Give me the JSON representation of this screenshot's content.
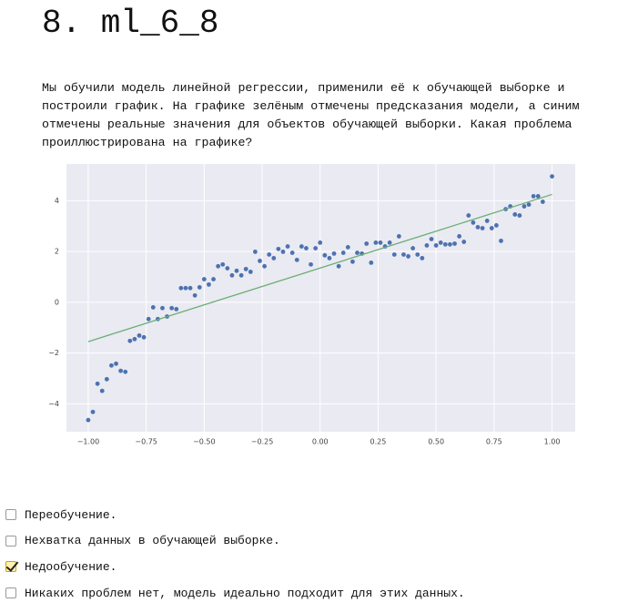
{
  "header": {
    "title": "8. ml_6_8"
  },
  "question": "Мы обучили модель линейной регрессии, применили её к обучающей выборке и построили график. На графике зелёным отмечены предсказания модели, а синим отмечены реальные значения для объектов обучающей выборки. Какая проблема проиллюстрирована на графике?",
  "chart_data": {
    "type": "scatter",
    "xlim": [
      -1.094,
      1.1
    ],
    "ylim": [
      -5.1,
      5.45
    ],
    "xticks": [
      {
        "value": -1,
        "label": "−1.00"
      },
      {
        "value": -0.75,
        "label": "−0.75"
      },
      {
        "value": -0.5,
        "label": "−0.50"
      },
      {
        "value": -0.25,
        "label": "−0.25"
      },
      {
        "value": 0,
        "label": "0.00"
      },
      {
        "value": 0.25,
        "label": "0.25"
      },
      {
        "value": 0.5,
        "label": "0.50"
      },
      {
        "value": 0.75,
        "label": "0.75"
      },
      {
        "value": 1,
        "label": "1.00"
      }
    ],
    "yticks": [
      {
        "value": -4,
        "label": "−4"
      },
      {
        "value": -2,
        "label": "−2"
      },
      0,
      2,
      4
    ],
    "grid": true,
    "background": "#eaeaf2",
    "series": [
      {
        "type": "scatter",
        "color": "#4c72b0",
        "x": [
          -1.0,
          -0.98,
          -0.96,
          -0.94,
          -0.92,
          -0.9,
          -0.88,
          -0.86,
          -0.84,
          -0.82,
          -0.8,
          -0.78,
          -0.76,
          -0.74,
          -0.72,
          -0.7,
          -0.68,
          -0.66,
          -0.64,
          -0.62,
          -0.6,
          -0.58,
          -0.56,
          -0.54,
          -0.52,
          -0.5,
          -0.48,
          -0.46,
          -0.44,
          -0.42,
          -0.4,
          -0.38,
          -0.36,
          -0.34,
          -0.32,
          -0.3,
          -0.28,
          -0.26,
          -0.24,
          -0.22,
          -0.2,
          -0.18,
          -0.16,
          -0.14,
          -0.12,
          -0.1,
          -0.08,
          -0.06,
          -0.04,
          -0.02,
          0.0,
          0.02,
          0.04,
          0.06,
          0.08,
          0.1,
          0.12,
          0.14,
          0.16,
          0.18,
          0.2,
          0.22,
          0.24,
          0.26,
          0.28,
          0.3,
          0.32,
          0.34,
          0.36,
          0.38,
          0.4,
          0.42,
          0.44,
          0.46,
          0.48,
          0.5,
          0.52,
          0.54,
          0.56,
          0.58,
          0.6,
          0.62,
          0.64,
          0.66,
          0.68,
          0.7,
          0.72,
          0.74,
          0.76,
          0.78,
          0.8,
          0.82,
          0.84,
          0.86,
          0.88,
          0.9,
          0.92,
          0.94,
          0.96,
          1.0
        ],
        "values": [
          -4.64,
          -4.32,
          -3.21,
          -3.49,
          -3.03,
          -2.49,
          -2.42,
          -2.7,
          -2.74,
          -1.52,
          -1.45,
          -1.31,
          -1.38,
          -0.66,
          -0.2,
          -0.66,
          -0.23,
          -0.56,
          -0.23,
          -0.27,
          0.56,
          0.56,
          0.56,
          0.27,
          0.59,
          0.91,
          0.7,
          0.91,
          1.42,
          1.49,
          1.34,
          1.06,
          1.24,
          1.06,
          1.31,
          1.2,
          1.99,
          1.63,
          1.42,
          1.88,
          1.74,
          2.1,
          1.99,
          2.2,
          1.95,
          1.67,
          2.2,
          2.13,
          1.49,
          2.13,
          2.35,
          1.85,
          1.74,
          1.92,
          1.42,
          1.95,
          2.17,
          1.6,
          1.95,
          1.92,
          2.31,
          1.56,
          2.35,
          2.35,
          2.2,
          2.35,
          1.88,
          2.6,
          1.88,
          1.81,
          2.13,
          1.88,
          1.74,
          2.24,
          2.49,
          2.24,
          2.35,
          2.28,
          2.28,
          2.31,
          2.6,
          2.38,
          3.42,
          3.14,
          2.96,
          2.92,
          3.21,
          2.92,
          3.03,
          2.42,
          3.67,
          3.78,
          3.46,
          3.42,
          3.78,
          3.85,
          4.18,
          4.18,
          3.96,
          4.96
        ]
      },
      {
        "type": "line",
        "color": "#6aae74",
        "x": [
          -1,
          1
        ],
        "values": [
          -1.55,
          4.25
        ]
      }
    ]
  },
  "options": [
    {
      "label": "Переобучение.",
      "checked": false
    },
    {
      "label": "Нехватка данных в обучающей выборке.",
      "checked": false
    },
    {
      "label": "Недообучение.",
      "checked": true
    },
    {
      "label": "Никаких проблем нет, модель идеально подходит для этих данных.",
      "checked": false
    }
  ]
}
